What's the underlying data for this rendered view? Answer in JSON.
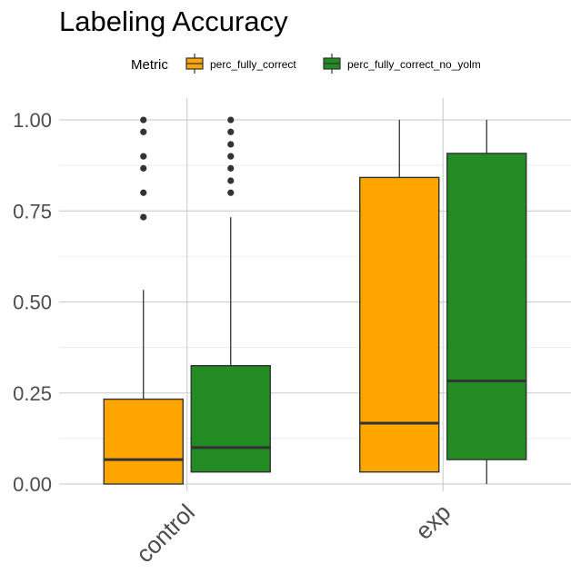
{
  "chart_data": {
    "type": "boxplot",
    "title": "Labeling Accuracy",
    "xlabel": "",
    "ylabel": "",
    "ylim": [
      -0.02,
      1.06
    ],
    "yticks": [
      0,
      0.25,
      0.5,
      0.75,
      1.0
    ],
    "ytick_labels": [
      "0.00",
      "0.25",
      "0.50",
      "0.75",
      "1.00"
    ],
    "categories": [
      "control",
      "exp"
    ],
    "legend": {
      "title": "Metric",
      "position": "top"
    },
    "grid": true,
    "series": [
      {
        "name": "perc_fully_correct",
        "color": "#FFA500",
        "boxes": [
          {
            "category": "control",
            "min": 0.0,
            "q1": 0.0,
            "median": 0.067,
            "q3": 0.233,
            "max": 0.533,
            "outliers": [
              0.733,
              0.8,
              0.867,
              0.9,
              0.967,
              1.0
            ]
          },
          {
            "category": "exp",
            "min": 0.033,
            "q1": 0.033,
            "median": 0.167,
            "q3": 0.842,
            "max": 1.0,
            "outliers": []
          }
        ]
      },
      {
        "name": "perc_fully_correct_no_yolm",
        "color": "#228B22",
        "boxes": [
          {
            "category": "control",
            "min": 0.033,
            "q1": 0.033,
            "median": 0.1,
            "q3": 0.325,
            "max": 0.733,
            "outliers": [
              0.8,
              0.833,
              0.867,
              0.9,
              0.933,
              0.967,
              1.0
            ]
          },
          {
            "category": "exp",
            "min": 0.0,
            "q1": 0.067,
            "median": 0.283,
            "q3": 0.908,
            "max": 1.0,
            "outliers": []
          }
        ]
      }
    ]
  }
}
